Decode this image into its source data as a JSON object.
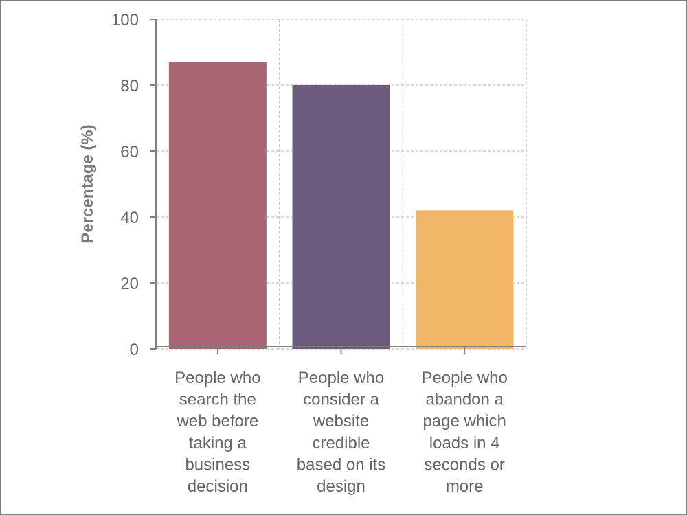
{
  "chart_data": {
    "type": "bar",
    "categories": [
      [
        "People who",
        "search the",
        "web before",
        "taking a",
        "business",
        "decision"
      ],
      [
        "People who",
        "consider a",
        "website",
        "credible",
        "based on its",
        "design"
      ],
      [
        "People who",
        "abandon a",
        "page which",
        "loads in 4",
        "seconds or",
        "more"
      ]
    ],
    "values": [
      87,
      80,
      42
    ],
    "colors": [
      "#a96573",
      "#6a5a7c",
      "#f2b766"
    ],
    "ylabel": "Percentage (%)",
    "xlabel": "",
    "ylim": [
      0,
      100
    ],
    "yticks": [
      0,
      20,
      40,
      60,
      80,
      100
    ],
    "grid": true
  }
}
